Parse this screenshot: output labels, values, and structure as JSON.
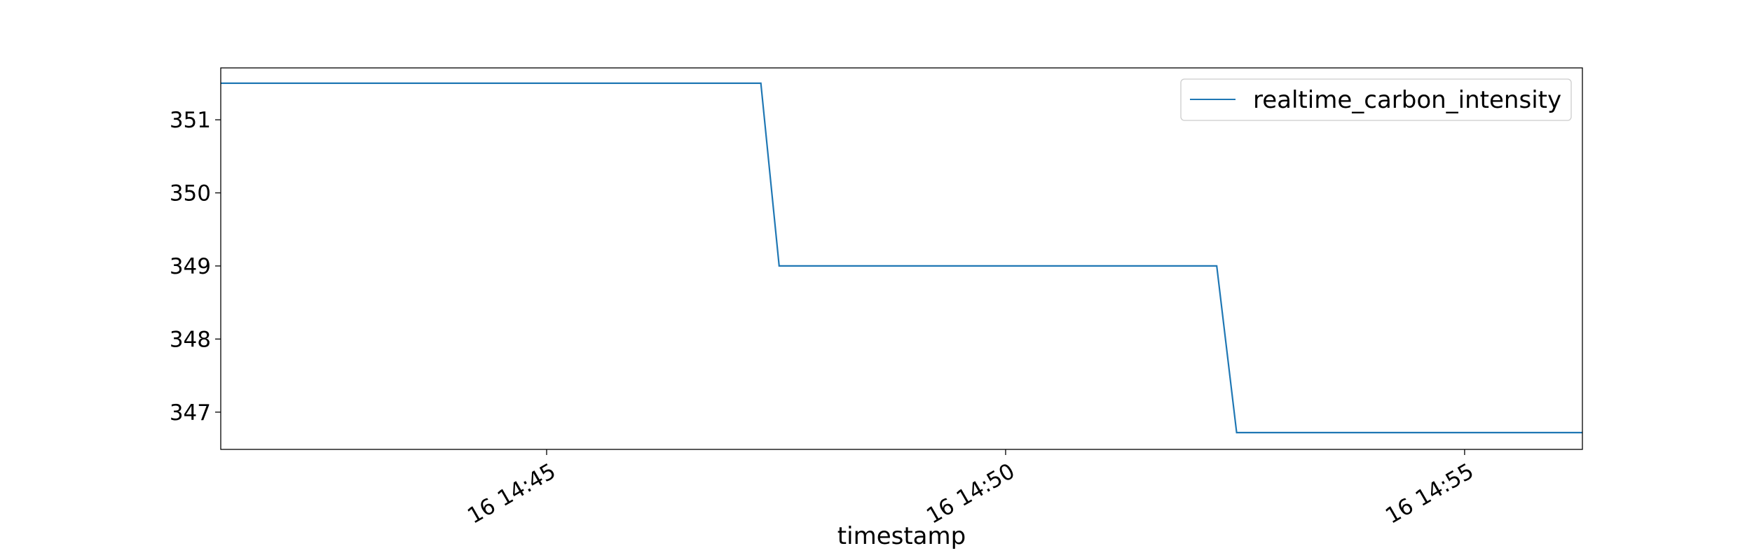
{
  "chart_data": {
    "type": "line",
    "title": "",
    "xlabel": "timestamp",
    "ylabel": "",
    "series": [
      {
        "name": "realtime_carbon_intensity",
        "color": "#1f77b4",
        "points": [
          [
            "14:41:27",
            351.5
          ],
          [
            "14:47:20",
            351.5
          ],
          [
            "14:47:32",
            349.0
          ],
          [
            "14:52:18",
            349.0
          ],
          [
            "14:52:31",
            346.72
          ],
          [
            "14:56:17",
            346.72
          ]
        ]
      }
    ],
    "x_range": [
      "14:41:27",
      "14:56:17"
    ],
    "ylim": [
      346.49,
      351.71
    ],
    "y_ticks": [
      347,
      348,
      349,
      350,
      351
    ],
    "y_tick_labels": [
      "347",
      "348",
      "349",
      "350",
      "351"
    ],
    "x_ticks": [
      "14:45:00",
      "14:50:00",
      "14:55:00"
    ],
    "x_tick_labels": [
      "16 14:45",
      "16 14:50",
      "16 14:55"
    ],
    "legend_position": "top-right",
    "grid": false
  }
}
